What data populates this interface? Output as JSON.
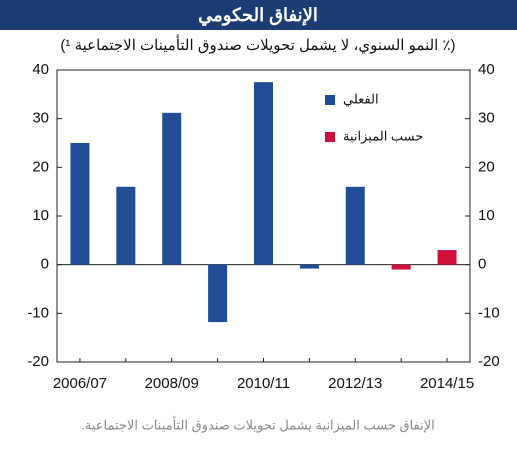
{
  "chart_data": {
    "type": "bar",
    "title": "الإنفاق الحكومي",
    "subtitle": "(٪ النمو السنوي، لا يشمل تحويلات صندوق التأمينات الاجتماعية ¹)",
    "footnote": "الإنفاق حسب الميزانية يشمل تحويلات صندوق التأمينات الاجتماعية.",
    "categories": [
      "2006/07",
      null,
      "2008/09",
      null,
      "2010/11",
      null,
      "2012/13",
      null,
      "2014/15"
    ],
    "series": [
      {
        "name": "الفعلي",
        "color": "#1f4e96",
        "values": [
          25,
          16,
          31.2,
          -11.8,
          37.5,
          -0.8,
          16,
          null,
          null
        ]
      },
      {
        "name": "حسب الميزانية",
        "color": "#d0103a",
        "values": [
          null,
          null,
          null,
          null,
          null,
          null,
          null,
          -1,
          3
        ]
      }
    ],
    "ylim": [
      -20,
      40
    ],
    "yticks": [
      -20,
      -10,
      0,
      10,
      20,
      30,
      40
    ],
    "grid": false
  }
}
